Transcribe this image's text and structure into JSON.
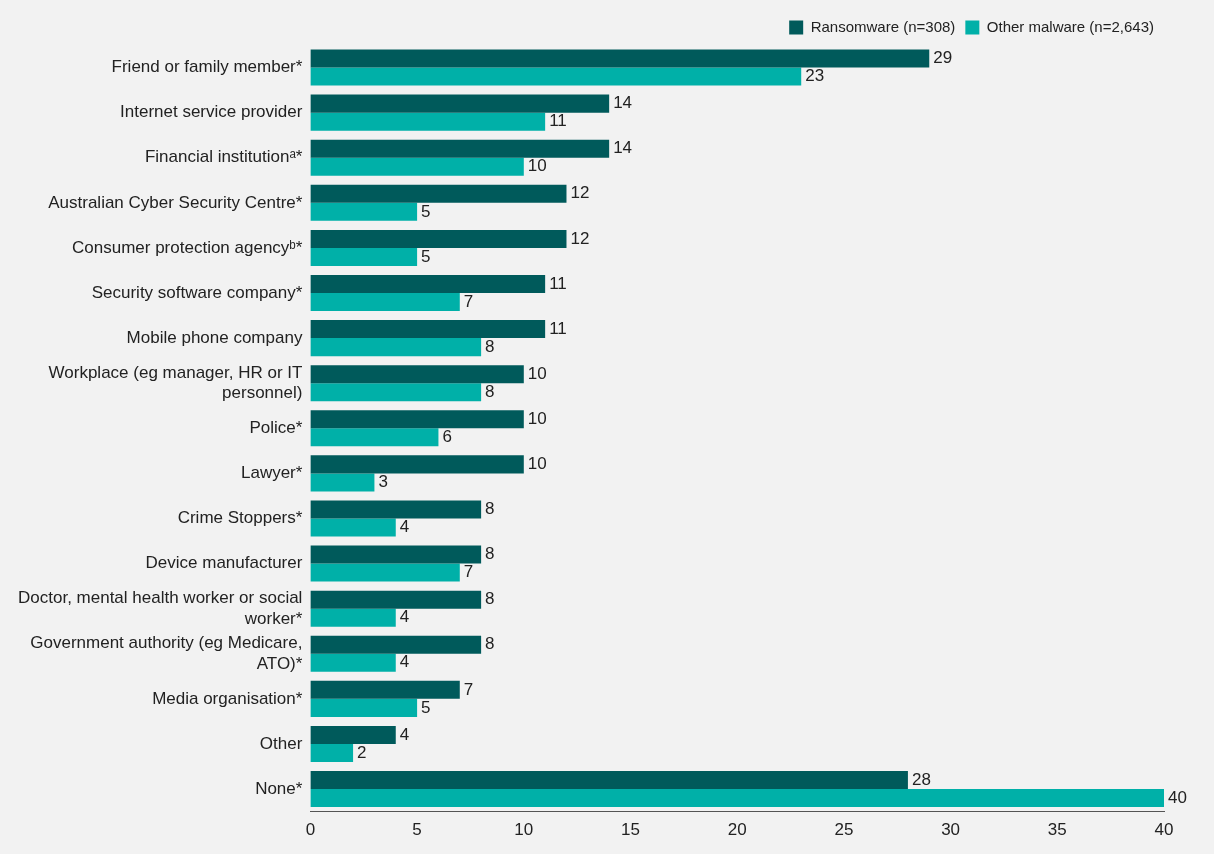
{
  "chart_data": {
    "type": "bar",
    "orientation": "horizontal",
    "categories": [
      "Friend or family member*",
      "Internet service provider",
      "Financial institutionᵃ*",
      "Australian Cyber Security Centre*",
      "Consumer protection agencyᵇ*",
      "Security software company*",
      "Mobile phone company",
      "Workplace (eg manager, HR or IT personnel)",
      "Police*",
      "Lawyer*",
      "Crime Stoppers*",
      "Device manufacturer",
      "Doctor, mental health worker or social worker*",
      "Government authority (eg Medicare, ATO)*",
      "Media organisation*",
      "Other",
      "None*"
    ],
    "series": [
      {
        "name": "Ransomware (n=308)",
        "color": "#005a5b",
        "values": [
          29,
          14,
          14,
          12,
          12,
          11,
          11,
          10,
          10,
          10,
          8,
          8,
          8,
          8,
          7,
          4,
          28
        ]
      },
      {
        "name": "Other malware (n=2,643)",
        "color": "#00b0a8",
        "values": [
          23,
          11,
          10,
          5,
          5,
          7,
          8,
          8,
          6,
          3,
          4,
          7,
          4,
          4,
          5,
          2,
          40
        ]
      }
    ],
    "xlim": [
      0,
      40
    ],
    "xticks": [
      0,
      5,
      10,
      15,
      20,
      25,
      30,
      35,
      40
    ],
    "data_labels": true,
    "grid": false,
    "legend": "top right"
  }
}
